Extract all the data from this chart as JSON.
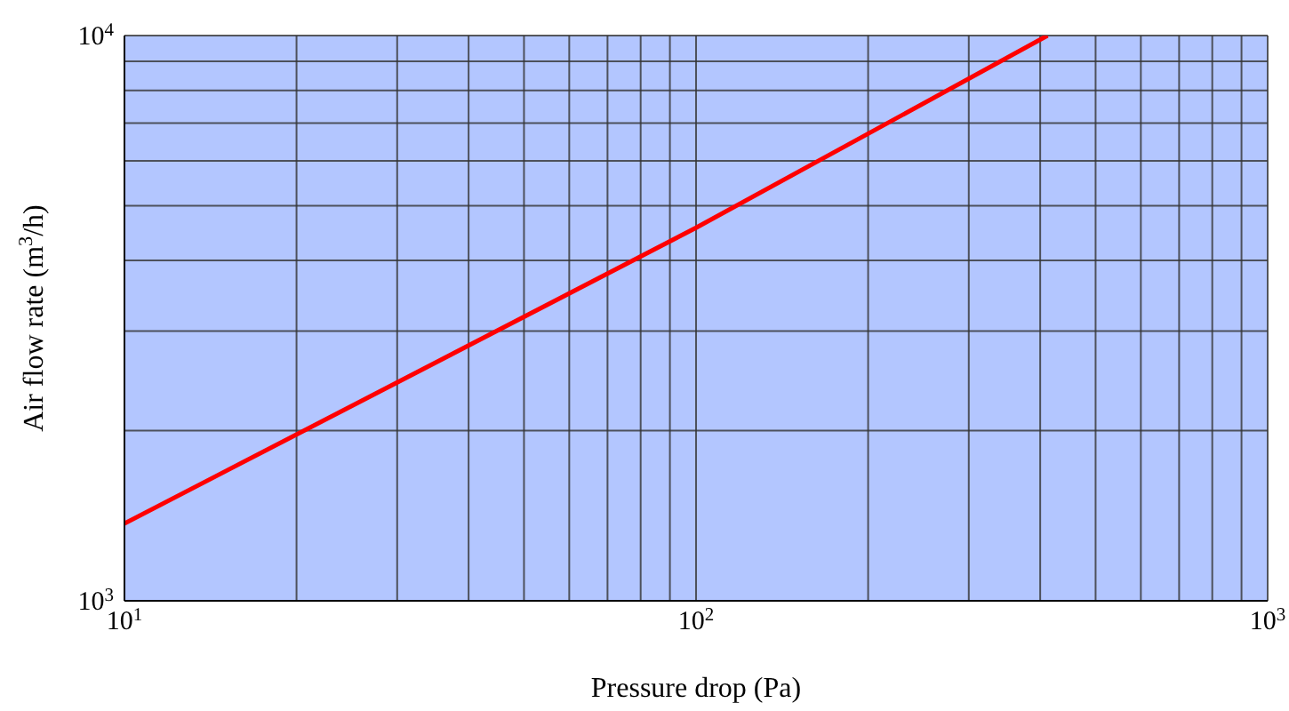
{
  "chart_data": {
    "type": "line",
    "xlabel": "Pressure drop (Pa)",
    "ylabel": "Air flow rate (m$^{3}$/h)",
    "x": [
      10,
      100,
      412
    ],
    "series": [
      {
        "color": "#ff0000",
        "values": [
          1370,
          4570,
          10000
        ]
      }
    ],
    "log": "xy",
    "xlim": [
      10,
      1000
    ],
    "ylim": [
      1000,
      10000
    ],
    "xticks": [
      {
        "value": 10,
        "label": "10$^{1}$"
      },
      {
        "value": 20,
        "label": null
      },
      {
        "value": 30,
        "label": null
      },
      {
        "value": 40,
        "label": null
      },
      {
        "value": 50,
        "label": null
      },
      {
        "value": 60,
        "label": null
      },
      {
        "value": 70,
        "label": null
      },
      {
        "value": 80,
        "label": null
      },
      {
        "value": 90,
        "label": null
      },
      {
        "value": 100,
        "label": "10$^{2}$"
      },
      {
        "value": 200,
        "label": null
      },
      {
        "value": 300,
        "label": null
      },
      {
        "value": 400,
        "label": null
      },
      {
        "value": 500,
        "label": null
      },
      {
        "value": 600,
        "label": null
      },
      {
        "value": 700,
        "label": null
      },
      {
        "value": 800,
        "label": null
      },
      {
        "value": 900,
        "label": null
      },
      {
        "value": 1000,
        "label": "10$^{3}$"
      }
    ],
    "yticks": [
      {
        "value": 1000,
        "label": "10$^{3}$"
      },
      {
        "value": 2000,
        "label": null
      },
      {
        "value": 3000,
        "label": null
      },
      {
        "value": 4000,
        "label": null
      },
      {
        "value": 5000,
        "label": null
      },
      {
        "value": 6000,
        "label": null
      },
      {
        "value": 7000,
        "label": null
      },
      {
        "value": 8000,
        "label": null
      },
      {
        "value": 9000,
        "label": null
      },
      {
        "value": 10000,
        "label": "10$^{4}$"
      }
    ],
    "grid": true,
    "marker": "none",
    "line_style": "solid"
  }
}
